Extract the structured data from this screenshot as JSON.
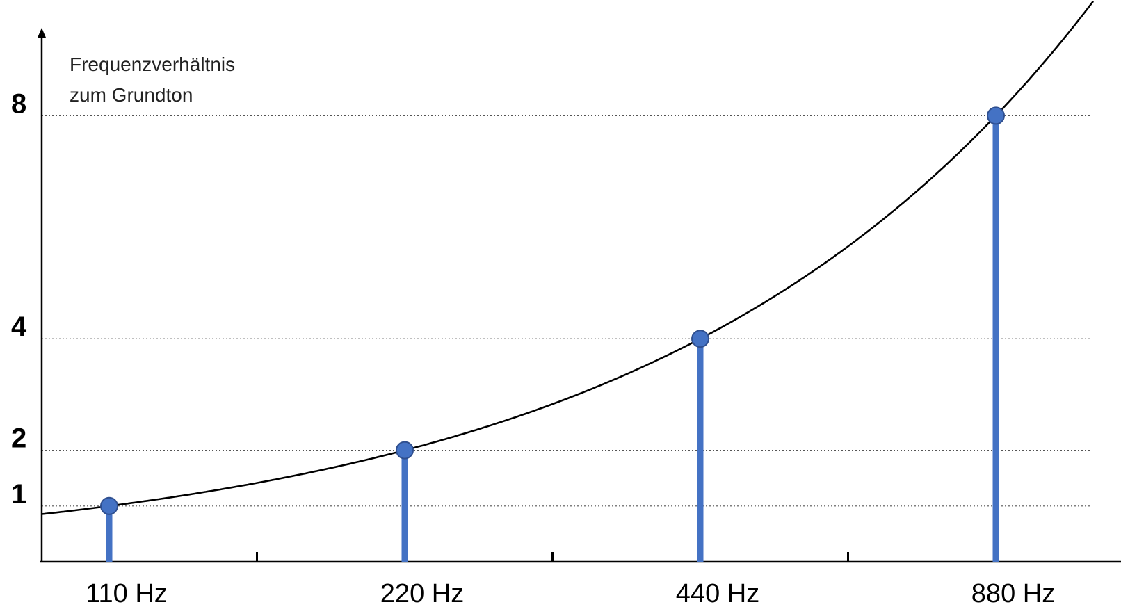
{
  "chart_data": {
    "type": "line",
    "title": "",
    "xlabel": "",
    "ylabel": "Frequenzverhältnis zum Grundton",
    "ylabel_lines": [
      "Frequenzverhältnis",
      "zum Grundton"
    ],
    "x": [
      110,
      220,
      440,
      880
    ],
    "x_tick_labels": [
      "110 Hz",
      "220 Hz",
      "440 Hz",
      "880 Hz"
    ],
    "y_ticks": [
      1,
      2,
      4,
      8
    ],
    "y_tick_labels": [
      "1",
      "2",
      "4",
      "8"
    ],
    "series": [
      {
        "values": [
          1,
          2,
          4,
          8
        ],
        "style": "stem",
        "color": "#4472c4"
      }
    ],
    "curve": {
      "description_type": "exponential",
      "color": "#000000"
    },
    "grid": "dotted horizontal lines at y ticks",
    "legend": "none"
  }
}
